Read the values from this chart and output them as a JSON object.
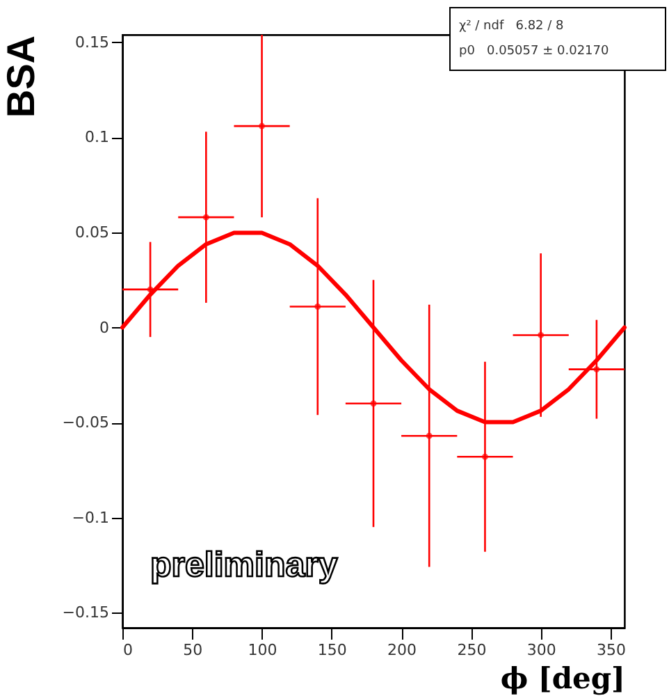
{
  "chart_data": {
    "type": "scatter",
    "xlabel": "ϕ [deg]",
    "ylabel": "BSA",
    "xlim": [
      0,
      360
    ],
    "ylim": [
      -0.158,
      0.154
    ],
    "xticks": [
      0,
      50,
      100,
      150,
      200,
      250,
      300,
      350
    ],
    "yticks": [
      {
        "value": -0.15,
        "label": "−0.15"
      },
      {
        "value": -0.1,
        "label": "−0.1"
      },
      {
        "value": -0.05,
        "label": "−0.05"
      },
      {
        "value": 0,
        "label": "0"
      },
      {
        "value": 0.05,
        "label": "0.05"
      },
      {
        "value": 0.1,
        "label": "0.1"
      },
      {
        "value": 0.15,
        "label": "0.15"
      }
    ],
    "grid": false,
    "annotations": [
      "χ² / ndf   6.82 / 8",
      "p0   0.05057 ± 0.02170",
      "preliminary"
    ],
    "series": [
      {
        "color": "#ff0000",
        "x": [
          20,
          60,
          100,
          140,
          180,
          220,
          260,
          300,
          340
        ],
        "values": [
          0.02,
          0.058,
          0.106,
          0.011,
          -0.04,
          -0.057,
          -0.068,
          -0.004,
          -0.022
        ],
        "errors": [
          0.025,
          0.045,
          0.048,
          0.057,
          0.065,
          0.069,
          0.05,
          0.043,
          0.026
        ],
        "xerrors": [
          20,
          20,
          20,
          20,
          20,
          20,
          20,
          20,
          20
        ]
      },
      {
        "type": "line",
        "color": "#ff0000",
        "x": [
          0,
          20,
          40,
          60,
          80,
          100,
          120,
          140,
          160,
          180,
          200,
          220,
          240,
          260,
          280,
          300,
          320,
          340,
          360
        ],
        "values": [
          0,
          0.0173,
          0.0325,
          0.0438,
          0.0498,
          0.0498,
          0.0438,
          0.0325,
          0.0173,
          0,
          -0.0173,
          -0.0325,
          -0.0438,
          -0.0498,
          -0.0498,
          -0.0438,
          -0.0325,
          -0.0173,
          0
        ]
      }
    ]
  }
}
